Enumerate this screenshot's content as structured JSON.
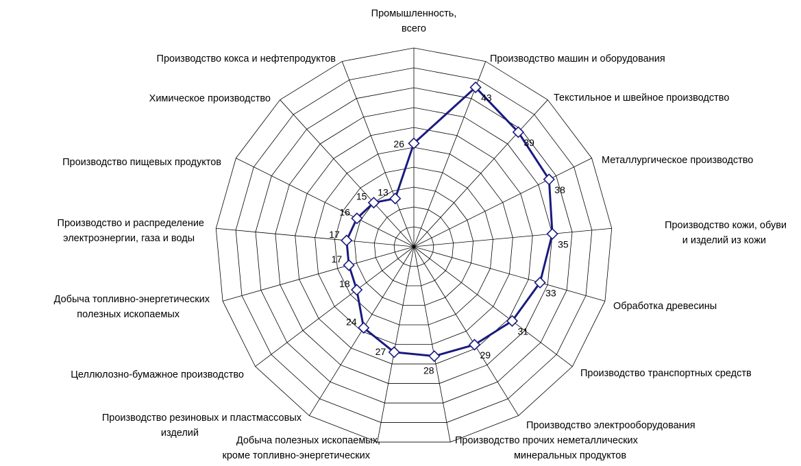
{
  "chart_data": {
    "type": "radar",
    "title": "",
    "grid": true,
    "rmax": 50,
    "ring_step": 5,
    "categories": [
      [
        "Промышленность,",
        "всего"
      ],
      [
        "Производство машин и оборудования"
      ],
      [
        "Текстильное и швейное производство"
      ],
      [
        "Металлургическое производство"
      ],
      [
        "Производство кожи, обуви",
        "и изделий из кожи"
      ],
      [
        "Обработка древесины"
      ],
      [
        "Производство транспортных средств"
      ],
      [
        "Производство электрооборудования"
      ],
      [
        "Производство прочих неметаллических",
        "минеральных продуктов"
      ],
      [
        "Добыча полезных ископаемых,",
        "кроме топливно-энергетических"
      ],
      [
        "Производство резиновых и пластмассовых",
        "изделий"
      ],
      [
        "Целлюлозно-бумажное производство"
      ],
      [
        "Добыча топливно-энергетических",
        "полезных ископаемых"
      ],
      [
        "Производство и распределение",
        "электроэнергии, газа и воды"
      ],
      [
        "Производство пищевых продуктов"
      ],
      [
        "Химическое производство"
      ],
      [
        "Производство кокса и нефтепродуктов"
      ]
    ],
    "series": [
      {
        "values": [
          26,
          43,
          39,
          38,
          35,
          33,
          31,
          29,
          28,
          27,
          24,
          18,
          17,
          17,
          16,
          15,
          13
        ],
        "color": "#1a1a80"
      }
    ]
  }
}
